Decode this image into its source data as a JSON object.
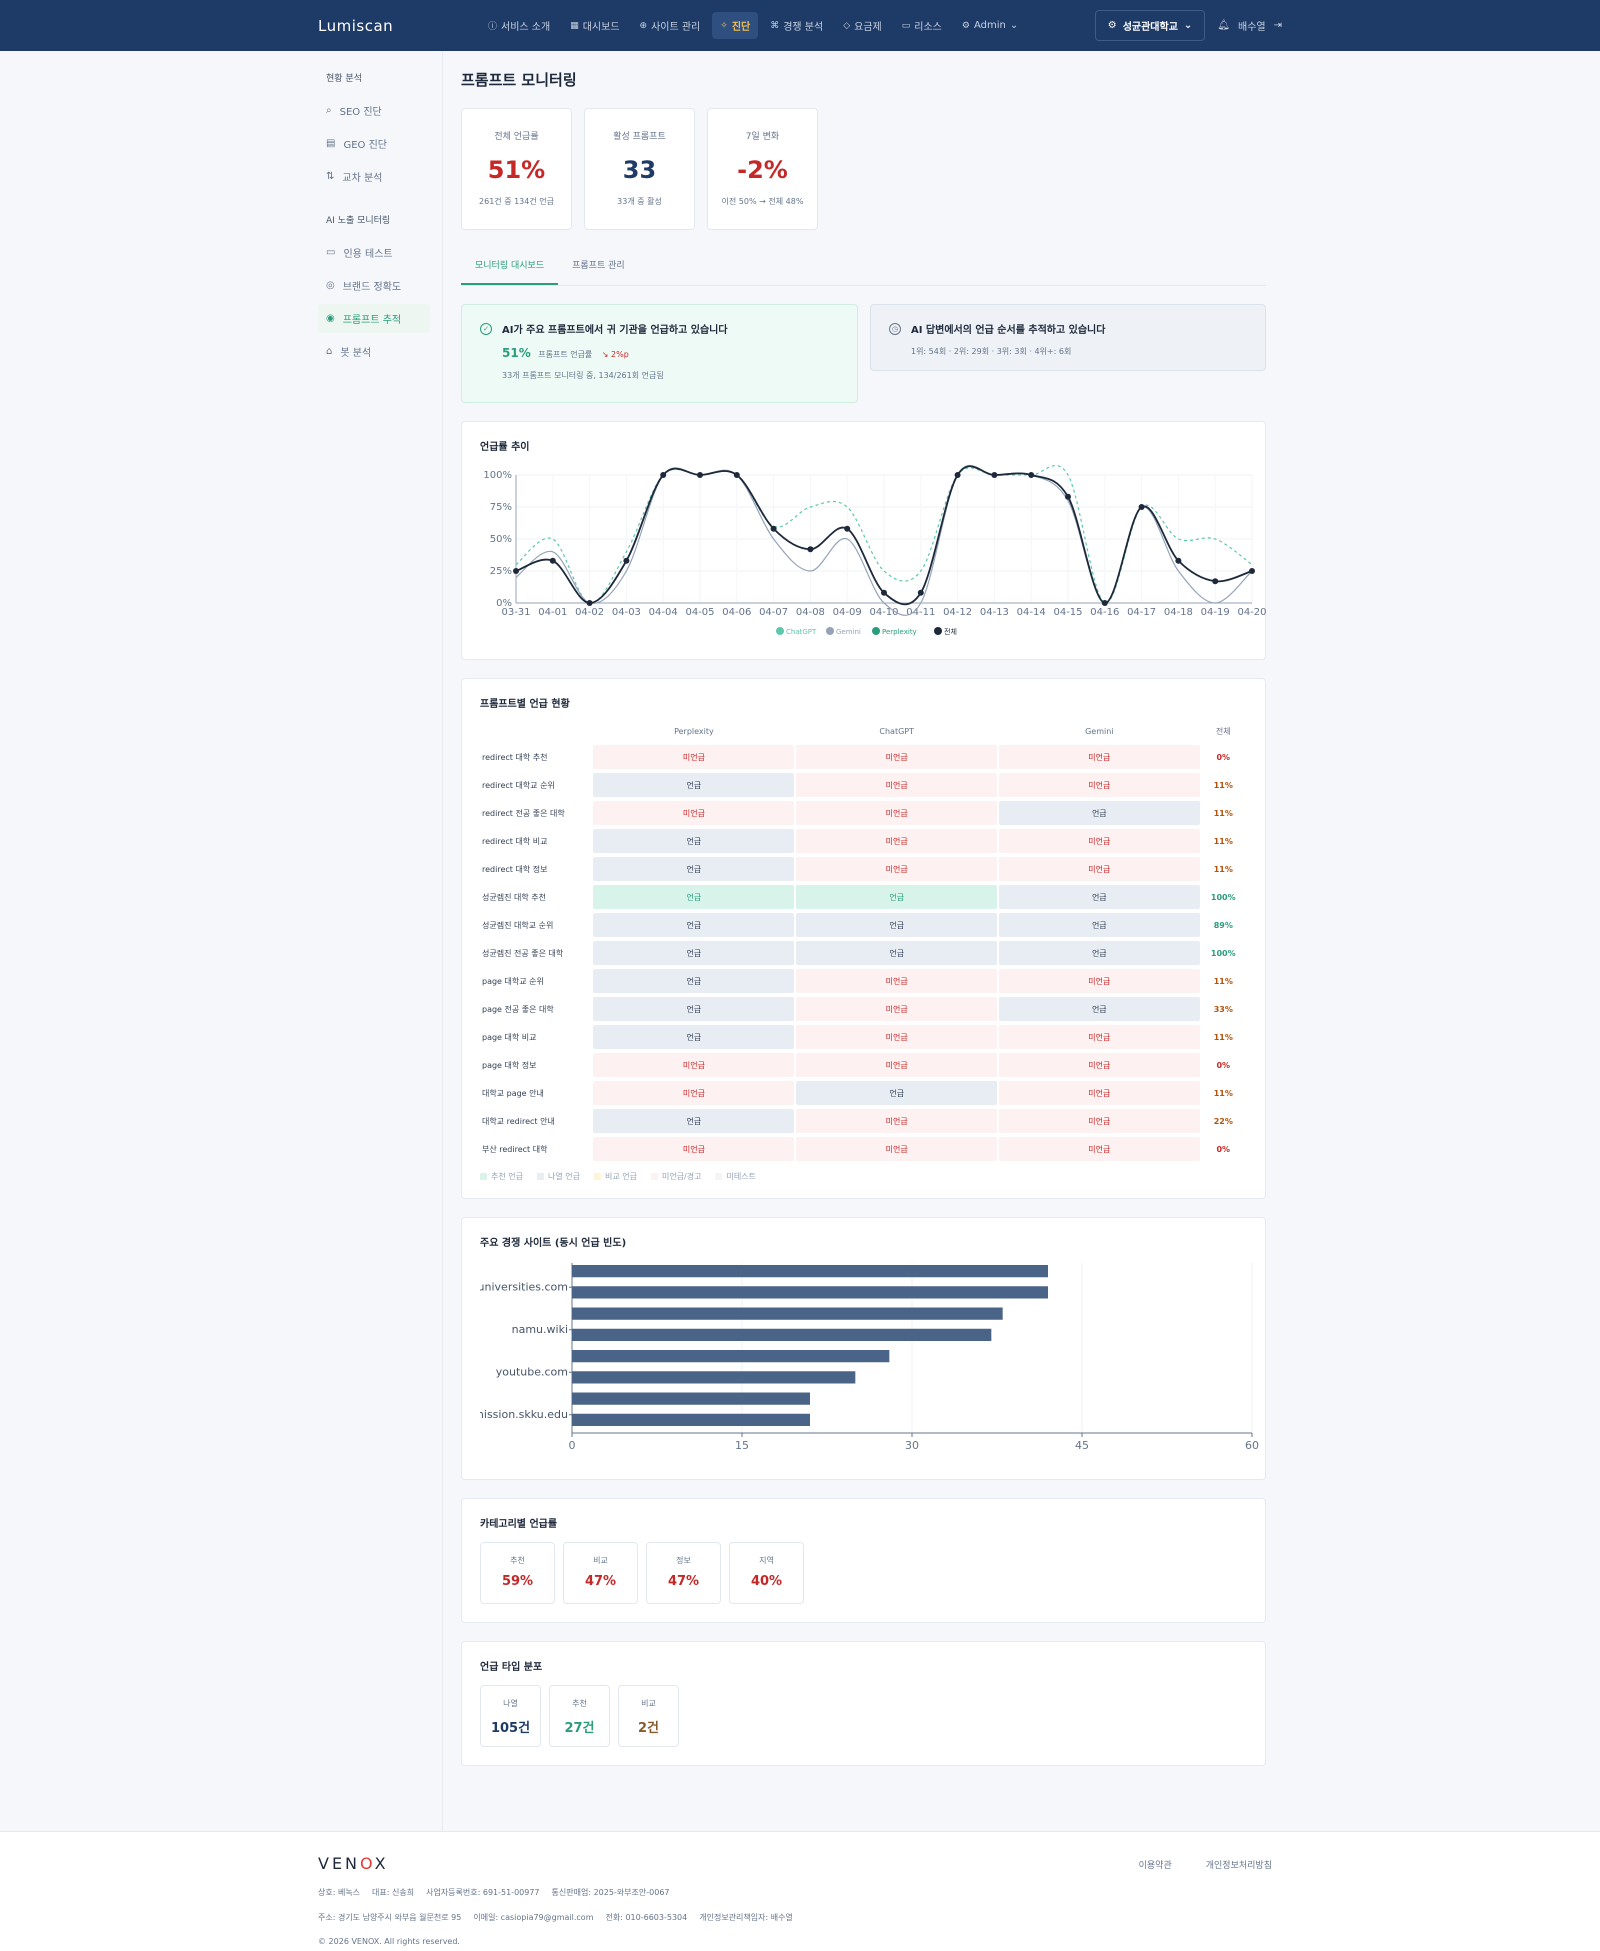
{
  "header": {
    "logo": "Lumiscan",
    "nav": [
      {
        "icon": "ⓘ",
        "label": "서비스 소개"
      },
      {
        "icon": "▦",
        "label": "대시보드"
      },
      {
        "icon": "⊕",
        "label": "사이트 관리"
      },
      {
        "icon": "✧",
        "label": "진단"
      },
      {
        "icon": "⌘",
        "label": "경쟁 분석"
      },
      {
        "icon": "◇",
        "label": "요금제"
      },
      {
        "icon": "▭",
        "label": "리소스"
      },
      {
        "icon": "⚙",
        "label": "Admin"
      }
    ],
    "org": "성균관대학교",
    "user": "배수열"
  },
  "sidebar": {
    "section1": "현황 분석",
    "items1": [
      {
        "icon": "⌕",
        "label": "SEO 진단"
      },
      {
        "icon": "▤",
        "label": "GEO 진단"
      },
      {
        "icon": "⇅",
        "label": "교차 분석"
      }
    ],
    "section2": "AI 노출 모니터링",
    "items2": [
      {
        "icon": "▭",
        "label": "인용 테스트"
      },
      {
        "icon": "◎",
        "label": "브랜드 정확도"
      },
      {
        "icon": "◉",
        "label": "프롬프트 추적"
      },
      {
        "icon": "⌂",
        "label": "봇 분석"
      }
    ]
  },
  "main": {
    "title": "프롬프트 모니터링",
    "stats": [
      {
        "label": "전체 언급률",
        "value": "51%",
        "sub": "261건 중 134건 언급"
      },
      {
        "label": "활성 프롬프트",
        "value": "33",
        "sub": "33개 중 활성"
      },
      {
        "label": "7일 변화",
        "value": "-2%",
        "sub": "이전 50% → 전체 48%"
      }
    ],
    "tabs": [
      "모니터링 대시보드",
      "프롬프트 관리"
    ],
    "alert1": {
      "title": "AI가 주요 프롬프트에서 귀 기관을 언급하고 있습니다",
      "big": "51%",
      "big_sub": "프롬프트 언급률",
      "delta": "↘ 2%p",
      "line": "33개 프롬프트 모니터링 중, 134/261회 언급됨"
    },
    "alert2": {
      "title": "AI 답변에서의 언급 순서를 추적하고 있습니다",
      "line": "1위: 54회 · 2위: 29회 · 3위: 3회 · 4위+: 6회"
    }
  },
  "chart_data": [
    {
      "type": "line",
      "title": "언급률 추이",
      "categories": [
        "03-31",
        "04-01",
        "04-02",
        "04-03",
        "04-04",
        "04-05",
        "04-06",
        "04-07",
        "04-08",
        "04-09",
        "04-10",
        "04-11",
        "04-12",
        "04-13",
        "04-14",
        "04-15",
        "04-16",
        "04-17",
        "04-18",
        "04-19",
        "04-20"
      ],
      "yticks": [
        "0%",
        "25%",
        "50%",
        "75%",
        "100%"
      ],
      "ylim": [
        0,
        100
      ],
      "series": [
        {
          "name": "ChatGPT",
          "color": "#5fc7ab",
          "dash": true,
          "values": [
            30,
            50,
            0,
            40,
            100,
            100,
            100,
            60,
            75,
            75,
            25,
            25,
            100,
            100,
            100,
            100,
            0,
            75,
            50,
            50,
            30
          ]
        },
        {
          "name": "Gemini",
          "color": "#94a3b8",
          "dash": false,
          "values": [
            20,
            40,
            0,
            25,
            100,
            100,
            100,
            50,
            25,
            50,
            0,
            0,
            100,
            100,
            100,
            80,
            0,
            75,
            25,
            0,
            25
          ]
        },
        {
          "name": "Perplexity",
          "color": "#2a9d7c",
          "dash": false,
          "values": [
            25,
            33,
            0,
            33,
            100,
            100,
            100,
            58,
            42,
            58,
            8,
            8,
            100,
            100,
            100,
            83,
            0,
            75,
            33,
            17,
            25
          ]
        },
        {
          "name": "전체",
          "color": "#1e293b",
          "dash": false,
          "points": true,
          "values": [
            25,
            33,
            0,
            33,
            100,
            100,
            100,
            58,
            42,
            58,
            8,
            8,
            100,
            100,
            100,
            83,
            0,
            75,
            33,
            17,
            25
          ]
        }
      ]
    },
    {
      "type": "bar",
      "title": "주요 경쟁 사이트 (동시 언급 빈도)",
      "orientation": "horizontal",
      "categories": [
        "",
        "topuniversities.com",
        "",
        "namu.wiki",
        "",
        "youtube.com",
        "",
        "admission.skku.edu"
      ],
      "values": [
        42,
        42,
        38,
        37,
        28,
        25,
        21,
        21
      ],
      "xticks": [
        0,
        15,
        30,
        45,
        60
      ],
      "xlim": [
        0,
        60
      ],
      "color": "#4a6488"
    }
  ],
  "table": {
    "title": "프롬프트별 언급 현황",
    "columns": [
      "Perplexity",
      "ChatGPT",
      "Gemini",
      "전체"
    ],
    "rows": [
      {
        "label": "redirect 대학 추천",
        "cells": [
          "미언급",
          "미언급",
          "미언급"
        ],
        "kinds": [
          "no",
          "no",
          "no"
        ],
        "total": "0%",
        "tcls": "r"
      },
      {
        "label": "redirect 대학교 순위",
        "cells": [
          "언급",
          "미언급",
          "미언급"
        ],
        "kinds": [
          "yes",
          "no",
          "no"
        ],
        "total": "11%",
        "tcls": "o"
      },
      {
        "label": "redirect 전공 좋은 대학",
        "cells": [
          "미언급",
          "미언급",
          "언급"
        ],
        "kinds": [
          "no",
          "no",
          "yes"
        ],
        "total": "11%",
        "tcls": "o"
      },
      {
        "label": "redirect 대학 비교",
        "cells": [
          "언급",
          "미언급",
          "미언급"
        ],
        "kinds": [
          "yes",
          "no",
          "no"
        ],
        "total": "11%",
        "tcls": "o"
      },
      {
        "label": "redirect 대학 정보",
        "cells": [
          "언급",
          "미언급",
          "미언급"
        ],
        "kinds": [
          "yes",
          "no",
          "no"
        ],
        "total": "11%",
        "tcls": "o"
      },
      {
        "label": "성균렘진 대학 추천",
        "cells": [
          "언급",
          "언급",
          "언급"
        ],
        "kinds": [
          "rec",
          "rec",
          "yes"
        ],
        "total": "100%",
        "tcls": "g"
      },
      {
        "label": "성균렘진 대학교 순위",
        "cells": [
          "언급",
          "언급",
          "언급"
        ],
        "kinds": [
          "yes",
          "yes",
          "yes"
        ],
        "total": "89%",
        "tcls": "g"
      },
      {
        "label": "성균렘진 전공 좋은 대학",
        "cells": [
          "언급",
          "언급",
          "언급"
        ],
        "kinds": [
          "yes",
          "yes",
          "yes"
        ],
        "total": "100%",
        "tcls": "g"
      },
      {
        "label": "page 대학교 순위",
        "cells": [
          "언급",
          "미언급",
          "미언급"
        ],
        "kinds": [
          "yes",
          "no",
          "no"
        ],
        "total": "11%",
        "tcls": "o"
      },
      {
        "label": "page 전공 좋은 대학",
        "cells": [
          "언급",
          "미언급",
          "언급"
        ],
        "kinds": [
          "yes",
          "no",
          "yes"
        ],
        "total": "33%",
        "tcls": "o"
      },
      {
        "label": "page 대학 비교",
        "cells": [
          "언급",
          "미언급",
          "미언급"
        ],
        "kinds": [
          "yes",
          "no",
          "no"
        ],
        "total": "11%",
        "tcls": "o"
      },
      {
        "label": "page 대학 정보",
        "cells": [
          "미언급",
          "미언급",
          "미언급"
        ],
        "kinds": [
          "no",
          "no",
          "no"
        ],
        "total": "0%",
        "tcls": "r"
      },
      {
        "label": "대학교 page 안내",
        "cells": [
          "미언급",
          "언급",
          "미언급"
        ],
        "kinds": [
          "no",
          "yes",
          "no"
        ],
        "total": "11%",
        "tcls": "o"
      },
      {
        "label": "대학교 redirect 안내",
        "cells": [
          "언급",
          "미언급",
          "미언급"
        ],
        "kinds": [
          "yes",
          "no",
          "no"
        ],
        "total": "22%",
        "tcls": "o"
      },
      {
        "label": "부산 redirect 대학",
        "cells": [
          "미언급",
          "미언급",
          "미언급"
        ],
        "kinds": [
          "no",
          "no",
          "no"
        ],
        "total": "0%",
        "tcls": "r"
      }
    ],
    "legend": [
      "추천 언급",
      "나열 언급",
      "비교 언급",
      "미언급/경고",
      "미테스트"
    ]
  },
  "category": {
    "title": "카테고리별 언급률",
    "items": [
      {
        "label": "추천",
        "value": "59%"
      },
      {
        "label": "비교",
        "value": "47%"
      },
      {
        "label": "정보",
        "value": "47%"
      },
      {
        "label": "지역",
        "value": "40%"
      }
    ]
  },
  "mention_type": {
    "title": "언급 타입 분포",
    "items": [
      {
        "label": "나열",
        "value": "105건",
        "cls": "navy"
      },
      {
        "label": "추천",
        "value": "27건",
        "cls": "teal"
      },
      {
        "label": "비교",
        "value": "2건",
        "cls": "brown"
      }
    ]
  },
  "footer": {
    "brand_a": "VEN",
    "brand_o": "O",
    "brand_b": "X",
    "links": [
      "이용약관",
      "개인정보처리방침"
    ],
    "line1": [
      "상호: 베녹스",
      "대표: 신송희",
      "사업자등록번호: 691-51-00977",
      "통신판매업: 2025-와부조안-0067"
    ],
    "line2": [
      "주소: 경기도 남양주시 와부읍 월문천로 95",
      "이메일: casiopia79@gmail.com",
      "전화: 010-6603-5304",
      "개인정보관리책임자: 배수열"
    ],
    "copyright": "© 2026 VENOX. All rights reserved."
  }
}
